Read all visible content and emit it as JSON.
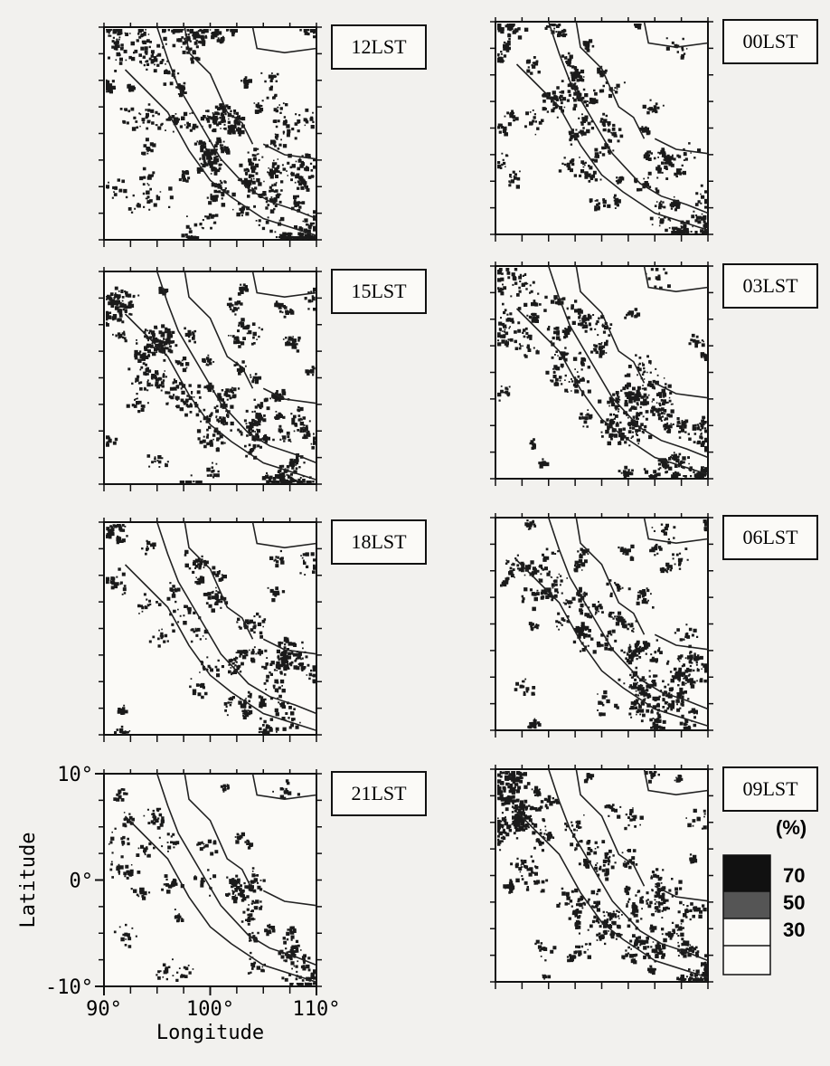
{
  "panels": [
    {
      "label": "12LST"
    },
    {
      "label": "15LST"
    },
    {
      "label": "18LST"
    },
    {
      "label": "21LST"
    },
    {
      "label": "00LST"
    },
    {
      "label": "03LST"
    },
    {
      "label": "06LST"
    },
    {
      "label": "09LST"
    }
  ],
  "axes": {
    "y_label": "Latitude",
    "x_label": "Longitude",
    "ylim": [
      -10,
      10
    ],
    "xlim": [
      90,
      110
    ],
    "yticks": [
      {
        "value": 10,
        "label": "10°"
      },
      {
        "value": 0,
        "label": "0°"
      },
      {
        "value": -10,
        "label": "-10°"
      }
    ],
    "xticks": [
      {
        "value": 90,
        "label": "90°"
      },
      {
        "value": 100,
        "label": "100°"
      },
      {
        "value": 110,
        "label": "110°"
      }
    ]
  },
  "legend": {
    "unit": "(%)",
    "levels": [
      70,
      50,
      30
    ]
  }
}
